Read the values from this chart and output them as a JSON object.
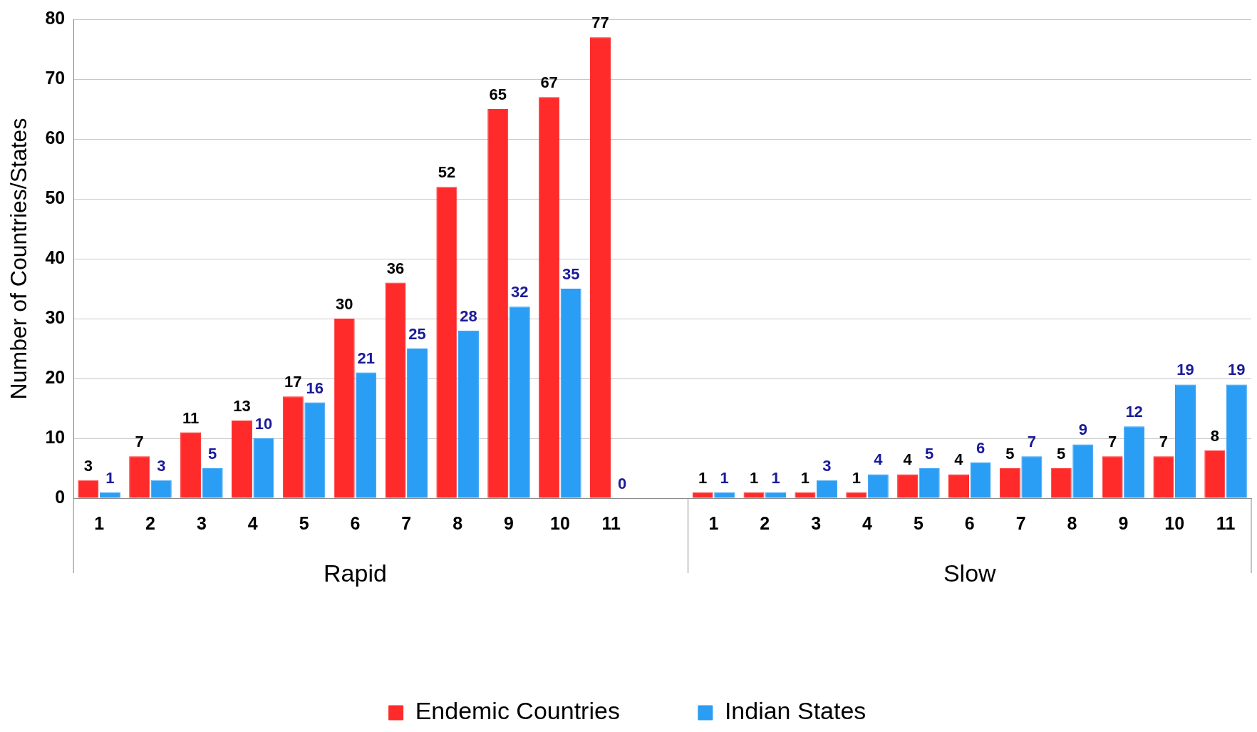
{
  "chart_data": {
    "type": "bar",
    "ylabel": "Number of Countries/States",
    "categories": [
      "1",
      "2",
      "3",
      "4",
      "5",
      "6",
      "7",
      "8",
      "9",
      "10",
      "11",
      null,
      "1",
      "2",
      "3",
      "4",
      "5",
      "6",
      "7",
      "8",
      "9",
      "10",
      "11"
    ],
    "series": [
      {
        "name": "Endemic Countries",
        "color": "#ff2a2a",
        "values": [
          3,
          7,
          11,
          13,
          17,
          30,
          36,
          52,
          65,
          67,
          77,
          null,
          1,
          1,
          1,
          1,
          4,
          4,
          5,
          5,
          7,
          7,
          8
        ]
      },
      {
        "name": "Indian States",
        "color": "#2a9df4",
        "values": [
          1,
          3,
          5,
          10,
          16,
          21,
          25,
          28,
          32,
          35,
          0,
          null,
          1,
          1,
          3,
          4,
          5,
          6,
          7,
          9,
          12,
          19,
          19
        ]
      }
    ],
    "annotations": [
      "Rapid",
      "Slow"
    ],
    "ylim": [
      0,
      80
    ],
    "yticks": [
      0,
      10,
      20,
      30,
      40,
      50,
      60,
      70,
      80
    ],
    "grid": "y",
    "legend": "bottom",
    "data_labels": true
  }
}
